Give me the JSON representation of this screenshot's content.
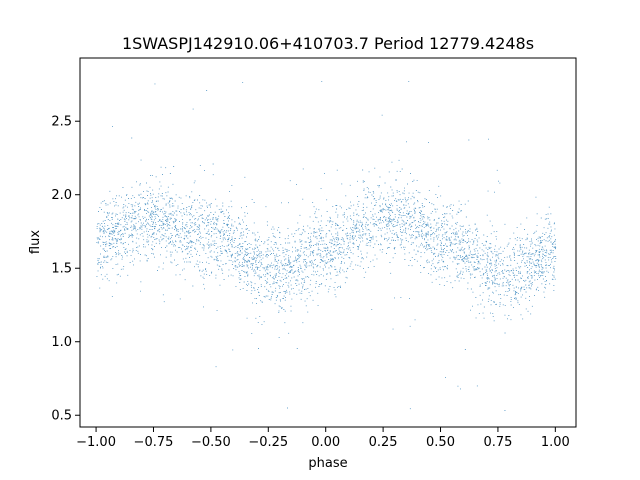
{
  "chart_data": {
    "type": "scatter",
    "title": "1SWASPJ142910.06+410703.7 Period 12779.4248s",
    "xlabel": "phase",
    "ylabel": "flux",
    "xlim": [
      -1.07,
      1.09
    ],
    "ylim": [
      0.42,
      2.93
    ],
    "xticks": [
      -1.0,
      -0.75,
      -0.5,
      -0.25,
      0.0,
      0.25,
      0.5,
      0.75,
      1.0
    ],
    "xtick_labels": [
      "−1.00",
      "−0.75",
      "−0.50",
      "−0.25",
      "0.00",
      "0.25",
      "0.50",
      "0.75",
      "1.00"
    ],
    "yticks": [
      0.5,
      1.0,
      1.5,
      2.0,
      2.5
    ],
    "ytick_labels": [
      "0.5",
      "1.0",
      "1.5",
      "2.0",
      "2.5"
    ],
    "grid": false,
    "marker_color": "#1f77b4",
    "trend": {
      "description_of_shape": "sinusoid",
      "phase_x": [
        -1.0,
        -0.75,
        -0.5,
        -0.25,
        -0.2,
        0.0,
        0.25,
        0.3,
        0.5,
        0.75,
        0.8,
        1.0
      ],
      "mean_flux": [
        1.7,
        1.83,
        1.72,
        1.5,
        1.47,
        1.62,
        1.84,
        1.85,
        1.7,
        1.48,
        1.45,
        1.62
      ]
    },
    "scatter_band": {
      "core_spread": 0.13,
      "outlier_min": 0.52,
      "outlier_max": 2.8
    }
  }
}
